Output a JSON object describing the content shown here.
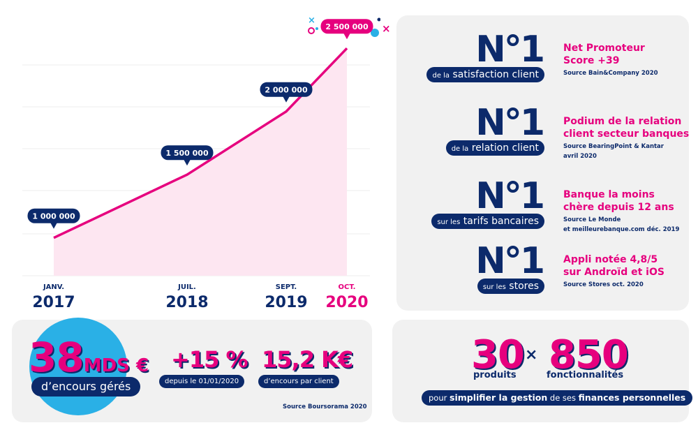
{
  "chart_data": {
    "type": "line",
    "categories": [
      "JANV.",
      "JUIL.",
      "SEPT.",
      "OCT."
    ],
    "years": [
      "2017",
      "2018",
      "2019",
      "2020"
    ],
    "category_colors": [
      "#0c2a6b",
      "#0c2a6b",
      "#0c2a6b",
      "#e6007e"
    ],
    "series": [
      {
        "color": "#e6007e",
        "values": [
          1000000,
          1500000,
          2000000,
          2500000
        ],
        "value_labels": [
          "1 000 000",
          "1 500 000",
          "2 000 000",
          "2 500 000"
        ],
        "label_colors": [
          "#0c2a6b",
          "#0c2a6b",
          "#0c2a6b",
          "#e6007e"
        ]
      }
    ],
    "ylim": [
      700000,
      2700000
    ],
    "grid": true
  },
  "rankings": [
    {
      "rank": "N°1",
      "tag_prefix": "de la",
      "tag": "satisfaction client",
      "text": [
        "Net Promoteur",
        "Score +39"
      ],
      "source": [
        "Source Bain&Company 2020"
      ]
    },
    {
      "rank": "N°1",
      "tag_prefix": "de la",
      "tag": "relation client",
      "text": [
        "Podium de la relation",
        "client secteur banques"
      ],
      "source": [
        "Source BearingPoint & Kantar",
        "avril 2020"
      ]
    },
    {
      "rank": "N°1",
      "tag_prefix": "sur les",
      "tag": "tarifs bancaires",
      "text": [
        "Banque la moins",
        "chère depuis 12 ans"
      ],
      "source": [
        "Source Le Monde",
        "et meilleurebanque.com déc. 2019"
      ]
    },
    {
      "rank": "N°1",
      "tag_prefix": "sur les",
      "tag": "stores",
      "text": [
        "Appli notée 4,8/5",
        "sur Androïd et iOS"
      ],
      "source": [
        "Source Stores oct. 2020"
      ]
    }
  ],
  "stats": {
    "main": {
      "number": "38",
      "unit": "MDS €",
      "caption": "d’encours gérés"
    },
    "items": [
      {
        "number": "+15 %",
        "caption": "depuis le 01/01/2020"
      },
      {
        "number": "15,2 K€",
        "caption": "d’encours par client"
      }
    ],
    "source": "Source Boursorama 2020"
  },
  "offer": {
    "left": {
      "number": "30",
      "caption": "produits"
    },
    "times": "×",
    "right": {
      "number": "850",
      "caption": "fonctionnalités"
    },
    "sentence": [
      {
        "text": "pour",
        "bold": false
      },
      {
        "text": "simplifier la gestion",
        "bold": true
      },
      {
        "text": "de ses",
        "bold": false
      },
      {
        "text": "finances personnelles",
        "bold": true
      }
    ]
  }
}
